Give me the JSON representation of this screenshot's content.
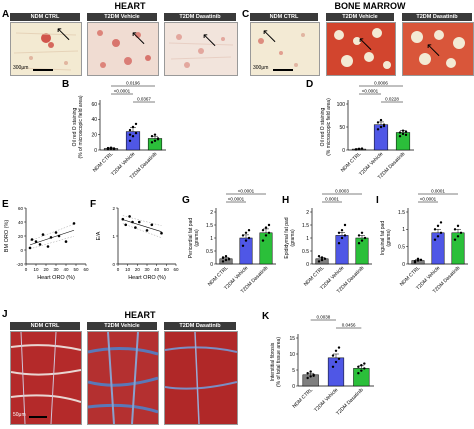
{
  "colors": {
    "ctrl": "#7f7f7f",
    "veh": "#4f57e6",
    "das": "#2bbf3a",
    "header": "#3a3a3a",
    "oro_red": "#c8302a",
    "fat_bg": "#f1ead8",
    "muscle": "#b42a2a",
    "collagen": "#5a78b8"
  },
  "panels": {
    "A": "A",
    "B": "B",
    "C": "C",
    "D": "D",
    "E": "E",
    "F": "F",
    "G": "G",
    "H": "H",
    "I": "I",
    "J": "J",
    "K": "K"
  },
  "titles": {
    "heart_top": "HEART",
    "bone_marrow": "BONE MARROW",
    "heart_bottom": "HEART"
  },
  "groups": {
    "ctrl": "NDM CTRL",
    "veh": "T2DM Vehicle",
    "das": "T2DM Dasatinib"
  },
  "scalebars": {
    "A": "300μm",
    "C": "300μm",
    "J": "50μm"
  },
  "icons": {
    "arrow": "arrow-icon"
  },
  "chart_data": [
    {
      "id": "B",
      "type": "bar",
      "categories": [
        "NDM CTRL",
        "T2DM Vehicle",
        "T2DM Dasatinib"
      ],
      "values": [
        2,
        24,
        15
      ],
      "errors": [
        0.8,
        5,
        3
      ],
      "points": [
        [
          1,
          1.5,
          2,
          2.5,
          3,
          1,
          2
        ],
        [
          12,
          18,
          22,
          26,
          30,
          34,
          20
        ],
        [
          10,
          12,
          15,
          18,
          20,
          14
        ]
      ],
      "ylabel": "Oil red O staining\n(% of microscopic field area)",
      "ylim": [
        0,
        60
      ],
      "yticks": [
        0,
        20,
        40,
        60
      ],
      "pvalues": [
        {
          "pair": [
            0,
            2
          ],
          "text": "0.0196"
        },
        {
          "pair": [
            0,
            1
          ],
          "text": "<0.0001"
        },
        {
          "pair": [
            1,
            2
          ],
          "text": "0.0367"
        }
      ]
    },
    {
      "id": "D",
      "type": "bar",
      "categories": [
        "NDM CTRL",
        "T2DM Vehicle",
        "T2DM Dasatinib"
      ],
      "values": [
        2,
        55,
        38
      ],
      "errors": [
        1,
        6,
        4
      ],
      "points": [
        [
          1,
          2,
          3,
          1.5,
          2.5
        ],
        [
          45,
          50,
          55,
          60,
          65,
          52
        ],
        [
          30,
          35,
          40,
          38,
          42,
          33
        ]
      ],
      "ylabel": "Oil red O staining\n(% microscopic field area)",
      "ylim": [
        0,
        100
      ],
      "yticks": [
        0,
        50,
        100
      ],
      "pvalues": [
        {
          "pair": [
            0,
            2
          ],
          "text": "0.0006"
        },
        {
          "pair": [
            0,
            1
          ],
          "text": "<0.0001"
        },
        {
          "pair": [
            1,
            2
          ],
          "text": "0.0228"
        }
      ]
    },
    {
      "id": "E",
      "type": "scatter",
      "xlabel": "Heart ORO (%)",
      "ylabel": "BM ORO (%)",
      "xlim": [
        0,
        60
      ],
      "ylim": [
        -20,
        60
      ],
      "xticks": [
        0,
        10,
        20,
        30,
        40,
        50,
        60
      ],
      "yticks": [
        -20,
        0,
        20,
        40,
        60
      ],
      "x": [
        4,
        6,
        10,
        14,
        17,
        22,
        25,
        30,
        33,
        40,
        48
      ],
      "y": [
        3,
        15,
        12,
        8,
        22,
        5,
        18,
        25,
        20,
        12,
        38
      ]
    },
    {
      "id": "F",
      "type": "scatter",
      "xlabel": "Heart ORO (%)",
      "ylabel": "E/A",
      "xlim": [
        0,
        60
      ],
      "ylim": [
        0,
        2
      ],
      "xticks": [
        0,
        10,
        20,
        30,
        40,
        50,
        60
      ],
      "yticks": [
        0,
        1,
        2
      ],
      "x": [
        5,
        8,
        12,
        15,
        18,
        22,
        30,
        35,
        45
      ],
      "y": [
        1.6,
        1.4,
        1.7,
        1.5,
        1.3,
        1.5,
        1.2,
        1.4,
        1.1
      ]
    },
    {
      "id": "G",
      "type": "bar",
      "categories": [
        "NDM CTRL",
        "T2DM Vehicle",
        "T2DM Dasatinib"
      ],
      "values": [
        0.2,
        1.0,
        1.2
      ],
      "errors": [
        0.05,
        0.12,
        0.15
      ],
      "points": [
        [
          0.1,
          0.15,
          0.2,
          0.25,
          0.3,
          0.18
        ],
        [
          0.7,
          0.9,
          1.0,
          1.1,
          1.2,
          1.3
        ],
        [
          0.9,
          1.1,
          1.2,
          1.3,
          1.4,
          1.5
        ]
      ],
      "ylabel": "Pericardial fat pad\n(grams)",
      "ylim": [
        0,
        2.0
      ],
      "yticks": [
        0,
        0.5,
        1.0,
        1.5,
        2.0
      ],
      "pvalues": [
        {
          "pair": [
            0,
            2
          ],
          "text": "<0.0001"
        },
        {
          "pair": [
            0,
            1
          ],
          "text": "<0.0001"
        }
      ]
    },
    {
      "id": "H",
      "type": "bar",
      "categories": [
        "NDM CTRL",
        "T2DM Vehicle",
        "T2DM Dasatinib"
      ],
      "values": [
        0.2,
        1.1,
        1.0
      ],
      "errors": [
        0.05,
        0.12,
        0.1
      ],
      "points": [
        [
          0.1,
          0.15,
          0.2,
          0.3,
          0.25
        ],
        [
          0.8,
          1.0,
          1.1,
          1.2,
          1.3,
          1.5
        ],
        [
          0.8,
          0.9,
          1.0,
          1.1,
          1.2
        ]
      ],
      "ylabel": "Epididymal fat pad\n(grams)",
      "ylim": [
        0,
        2.0
      ],
      "yticks": [
        0,
        0.5,
        1.0,
        1.5,
        2.0
      ],
      "pvalues": [
        {
          "pair": [
            0,
            2
          ],
          "text": "0.0003"
        },
        {
          "pair": [
            0,
            1
          ],
          "text": "0.0001"
        }
      ]
    },
    {
      "id": "I",
      "type": "bar",
      "categories": [
        "NDM CTRL",
        "T2DM Vehicle",
        "T2DM Dasatinib"
      ],
      "values": [
        0.1,
        0.9,
        0.9
      ],
      "errors": [
        0.03,
        0.1,
        0.1
      ],
      "points": [
        [
          0.05,
          0.1,
          0.12,
          0.08,
          0.15
        ],
        [
          0.7,
          0.8,
          0.9,
          1.0,
          1.1,
          1.2
        ],
        [
          0.7,
          0.8,
          0.9,
          1.0,
          1.1
        ]
      ],
      "ylabel": "Inguinal fat pad\n(grams)",
      "ylim": [
        0,
        1.5
      ],
      "yticks": [
        0,
        0.5,
        1.0,
        1.5
      ],
      "pvalues": [
        {
          "pair": [
            0,
            2
          ],
          "text": "0.0001"
        },
        {
          "pair": [
            0,
            1
          ],
          "text": "<0.0001"
        }
      ]
    },
    {
      "id": "K",
      "type": "bar",
      "categories": [
        "NDM CTRL",
        "T2DM Vehicle",
        "T2DM Dasatinib"
      ],
      "values": [
        3.5,
        8.8,
        5.5
      ],
      "errors": [
        0.5,
        1.2,
        0.8
      ],
      "points": [
        [
          2.5,
          3,
          3.5,
          4,
          4.5,
          3.2
        ],
        [
          6,
          7.5,
          8.5,
          9.5,
          11,
          12
        ],
        [
          4,
          4.8,
          5.5,
          6,
          6.5,
          7
        ]
      ],
      "ylabel": "Interstitial fibrosis\n(% of total tissue area)",
      "ylim": [
        0,
        15
      ],
      "yticks": [
        0,
        5,
        10,
        15
      ],
      "pvalues": [
        {
          "pair": [
            0,
            1
          ],
          "text": "0.0038"
        },
        {
          "pair": [
            1,
            2
          ],
          "text": "0.0456"
        }
      ]
    }
  ]
}
